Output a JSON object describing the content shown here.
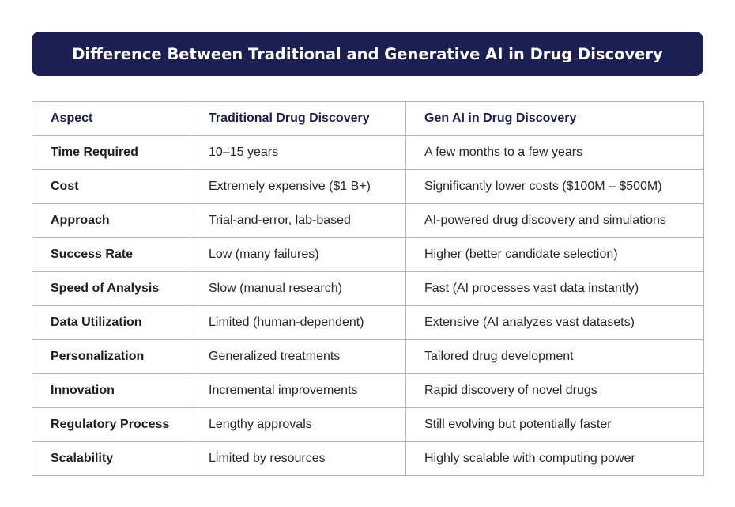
{
  "title": "Difference Between Traditional and Generative AI in Drug Discovery",
  "table": {
    "headers": [
      "Aspect",
      "Traditional Drug Discovery",
      "Gen AI in Drug Discovery"
    ],
    "rows": [
      [
        "Time Required",
        "10–15 years",
        "A few months to a few years"
      ],
      [
        "Cost",
        "Extremely expensive ($1 B+)",
        "Significantly lower costs ($100M – $500M)"
      ],
      [
        "Approach",
        "Trial-and-error, lab-based",
        "AI-powered drug discovery and simulations"
      ],
      [
        "Success Rate",
        "Low (many failures)",
        "Higher (better candidate selection)"
      ],
      [
        "Speed of Analysis",
        "Slow (manual research)",
        "Fast (AI processes vast data instantly)"
      ],
      [
        "Data Utilization",
        "Limited (human-dependent)",
        "Extensive (AI analyzes vast datasets)"
      ],
      [
        "Personalization",
        "Generalized treatments",
        "Tailored drug development"
      ],
      [
        "Innovation",
        "Incremental improvements",
        "Rapid discovery of novel drugs"
      ],
      [
        "Regulatory Process",
        "Lengthy approvals",
        "Still evolving but potentially faster"
      ],
      [
        "Scalability",
        "Limited by resources",
        "Highly scalable with computing power"
      ]
    ]
  },
  "colors": {
    "banner_bg": "#1b1f52",
    "header_text": "#1b1f52",
    "border": "#b4b4b4"
  }
}
